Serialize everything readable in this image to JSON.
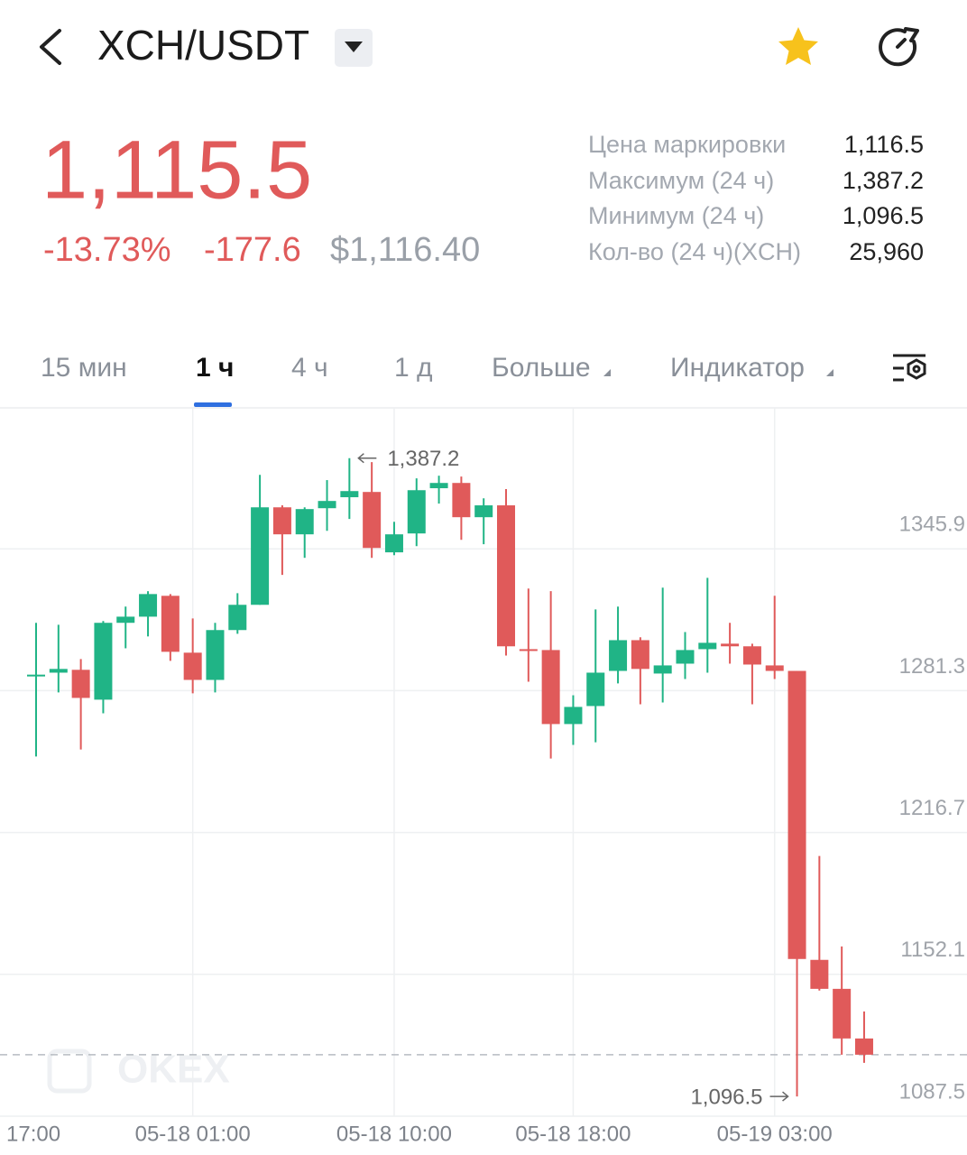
{
  "header": {
    "title": "XCH/USDT"
  },
  "ticker": {
    "price": "1,115.5",
    "change_percent": "-13.73%",
    "change": "-177.6",
    "usd_price": "$1,116.40"
  },
  "stats": [
    {
      "label": "Цена маркировки",
      "value": "1,116.5"
    },
    {
      "label": "Максимум (24 ч)",
      "value": "1,387.2"
    },
    {
      "label": "Минимум (24 ч)",
      "value": "1,096.5"
    },
    {
      "label": "Кол-во (24 ч)(XCH)",
      "value": "25,960"
    }
  ],
  "tabs": [
    "15 мин",
    "1 ч",
    "4 ч",
    "1 д",
    "Больше",
    "Индикатор"
  ],
  "chart_data": {
    "type": "candlestick",
    "watermark": "OKEX",
    "categories": [
      "17:00",
      null,
      null,
      null,
      null,
      null,
      null,
      "05-18 01:00",
      null,
      null,
      null,
      null,
      null,
      null,
      null,
      null,
      "05-18 10:00",
      null,
      null,
      null,
      null,
      null,
      null,
      null,
      "05-18 18:00",
      null,
      null,
      null,
      null,
      null,
      null,
      null,
      null,
      "05-19 03:00",
      null,
      null,
      null,
      null
    ],
    "open": [
      1288.0,
      1289.5,
      1290.8,
      1277.2,
      1312.2,
      1315.0,
      1324.5,
      1298.6,
      1286.2,
      1308.9,
      1320.4,
      1364.8,
      1352.5,
      1364.4,
      1369.4,
      1371.8,
      1344.3,
      1352.9,
      1373.5,
      1375.9,
      1360.3,
      1365.7,
      1300.2,
      1299.8,
      1266.1,
      1274.3,
      1290.3,
      1304.3,
      1289.1,
      1293.6,
      1300.2,
      1302.7,
      1301.5,
      1292.8,
      1290.3,
      1158.7,
      1145.5,
      1122.9
    ],
    "high": [
      1312.2,
      1311.3,
      1295.7,
      1313.0,
      1319.6,
      1326.6,
      1325.3,
      1314.2,
      1312.2,
      1325.7,
      1379.6,
      1365.7,
      1364.8,
      1377.2,
      1387.2,
      1385.4,
      1358.2,
      1378.0,
      1379.2,
      1378.8,
      1368.9,
      1373.1,
      1327.8,
      1326.6,
      1279.2,
      1318.3,
      1319.6,
      1305.6,
      1328.2,
      1308.0,
      1332.7,
      1312.2,
      1302.7,
      1324.5,
      1290.3,
      1206.0,
      1164.8,
      1135.2
    ],
    "low": [
      1251.3,
      1280.5,
      1254.5,
      1271.0,
      1300.6,
      1306.0,
      1294.9,
      1280.1,
      1280.5,
      1307.2,
      1320.4,
      1334.0,
      1341.8,
      1354.1,
      1359.5,
      1341.8,
      1343.0,
      1347.1,
      1366.5,
      1350.0,
      1348.0,
      1297.3,
      1285.4,
      1250.4,
      1256.6,
      1257.8,
      1284.6,
      1275.1,
      1275.9,
      1286.6,
      1289.5,
      1293.6,
      1275.1,
      1286.6,
      1096.5,
      1144.7,
      1115.5,
      1111.8
    ],
    "close": [
      1288.6,
      1291.2,
      1278.0,
      1312.2,
      1315.0,
      1325.3,
      1299.0,
      1286.2,
      1308.9,
      1320.4,
      1364.8,
      1352.5,
      1364.0,
      1367.7,
      1372.2,
      1346.3,
      1352.5,
      1372.6,
      1375.9,
      1360.3,
      1365.7,
      1301.5,
      1299.8,
      1266.1,
      1273.9,
      1289.5,
      1304.3,
      1291.2,
      1292.8,
      1299.8,
      1303.1,
      1301.5,
      1293.2,
      1290.3,
      1159.1,
      1145.5,
      1122.9,
      1115.5
    ],
    "up_color": "#20b486",
    "down_color": "#e05a5a",
    "ylim": [
      1087.5,
      1410.1
    ],
    "yticks": [
      1087.5,
      1152.1,
      1216.7,
      1281.3,
      1345.9
    ],
    "grid": true,
    "last_price": 1115.5,
    "max_label": "1,387.2",
    "min_label": "1,096.5"
  }
}
